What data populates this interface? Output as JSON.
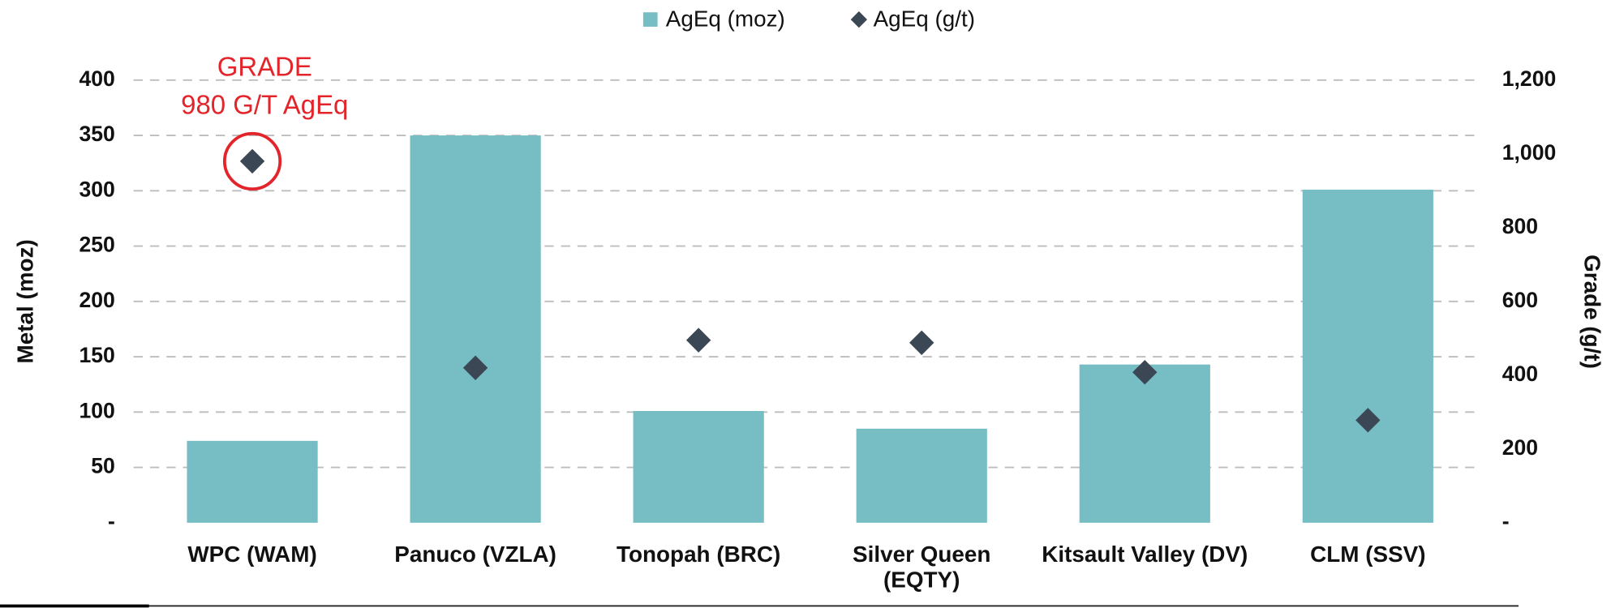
{
  "chart_data": {
    "type": "bar",
    "categories": [
      "WPC (WAM)",
      "Panuco (VZLA)",
      "Tonopah (BRC)",
      "Silver Queen (EQTY)",
      "Kitsault Valley (DV)",
      "CLM (SSV)"
    ],
    "series": [
      {
        "name": "AgEq (moz)",
        "color": "#76bec4",
        "type": "bar",
        "values": [
          74,
          350,
          101,
          85,
          143,
          301
        ]
      },
      {
        "name": "AgEq (g/t)",
        "color": "#3b4754",
        "type": "scatter",
        "axis": "y2",
        "values": [
          980,
          420,
          495,
          488,
          408,
          278
        ]
      }
    ],
    "ylabel": "Metal (moz)",
    "y2label": "Grade (g/t)",
    "ylim": [
      0,
      400
    ],
    "yticks": [
      {
        "value": 0,
        "label": "-"
      },
      50,
      100,
      150,
      200,
      250,
      300,
      350,
      400
    ],
    "y2lim": [
      0,
      1200
    ],
    "y2ticks": [
      {
        "value": 0,
        "label": "-"
      },
      200,
      400,
      600,
      800,
      {
        "value": 1000,
        "label": "1,000"
      },
      {
        "value": 1200,
        "label": "1,200"
      }
    ],
    "grid": true,
    "legend": "top",
    "annotations": [
      "GRADE",
      "980 G/T AgEq"
    ],
    "annotation_color": "#e3242b"
  }
}
